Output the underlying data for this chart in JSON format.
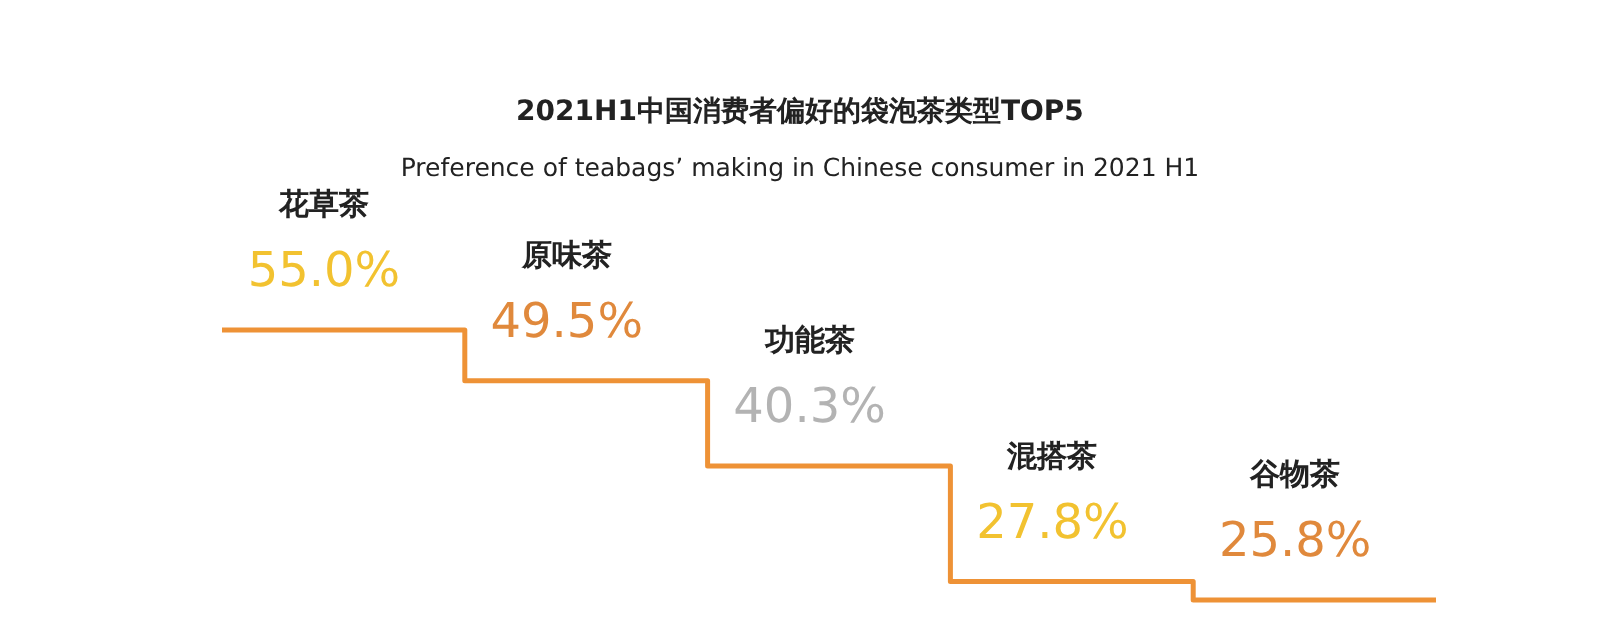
{
  "chart_data": {
    "type": "other",
    "title": "2021H1中国消费者偏好的袋泡茶类型TOP5",
    "subtitle": "Preference of teabags’ making in Chinese consumer in 2021 H1",
    "categories": [
      "花草茶",
      "原味茶",
      "功能茶",
      "混搭茶",
      "谷物茶"
    ],
    "series": [
      {
        "color": "#ee9236",
        "values": [
          55.0,
          49.5,
          40.3,
          27.8,
          25.8
        ],
        "value_labels": [
          "55.0%",
          "49.5%",
          "40.3%",
          "27.8%",
          "25.8%"
        ],
        "colors": [
          "#f2c230",
          "#e0893c",
          "#b3b3b3",
          "#f2c230",
          "#e0893c"
        ]
      }
    ]
  }
}
